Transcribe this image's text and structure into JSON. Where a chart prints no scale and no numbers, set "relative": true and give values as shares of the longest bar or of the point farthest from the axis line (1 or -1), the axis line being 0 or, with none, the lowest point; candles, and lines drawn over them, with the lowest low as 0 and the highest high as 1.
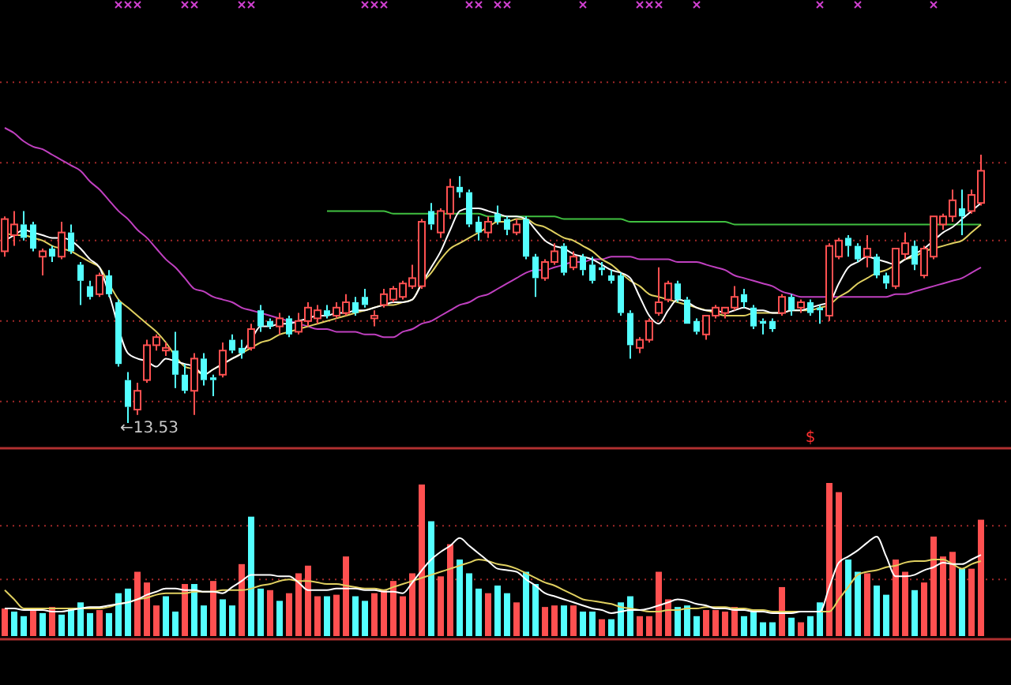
{
  "chart_data": [
    {
      "type": "candlestick",
      "relative": true,
      "ref_lines": [
        {
          "axis": "y",
          "value": 1.27,
          "color": "#a02828",
          "line_style": "dotted"
        },
        {
          "axis": "y",
          "value": 0.97,
          "color": "#a02828",
          "line_style": "dotted"
        },
        {
          "axis": "y",
          "value": 0.68,
          "color": "#a02828",
          "line_style": "dotted"
        },
        {
          "axis": "y",
          "value": 0.38,
          "color": "#a02828",
          "line_style": "dotted"
        },
        {
          "axis": "y",
          "value": 0.08,
          "color": "#a02828",
          "line_style": "dotted"
        }
      ],
      "categories": [
        null,
        null,
        null,
        null,
        null,
        null,
        null,
        null,
        null,
        null,
        null,
        null,
        null,
        null,
        null,
        null,
        null,
        null,
        null,
        null,
        null,
        null,
        null,
        null,
        null,
        null,
        null,
        null,
        null,
        null,
        null,
        null,
        null,
        null,
        null,
        null,
        null,
        null,
        null,
        null,
        null,
        null,
        null,
        null,
        null,
        null,
        null,
        null,
        null,
        null,
        null,
        null,
        null,
        null,
        null,
        null,
        null,
        null,
        null,
        null,
        null,
        null,
        null,
        null,
        null,
        null,
        null,
        null,
        null,
        null,
        null,
        null,
        null,
        null,
        null,
        null,
        null,
        null,
        null,
        null,
        null,
        null,
        null,
        null,
        null,
        null,
        null,
        null,
        null,
        null,
        null,
        null,
        null,
        null,
        null,
        null,
        null,
        null,
        null,
        null,
        null,
        null,
        null,
        null
      ],
      "ohlc": [
        [
          0.64,
          0.77,
          0.62,
          0.76
        ],
        [
          0.7,
          0.79,
          0.66,
          0.74
        ],
        [
          0.74,
          0.79,
          0.68,
          0.69
        ],
        [
          0.74,
          0.75,
          0.64,
          0.65
        ],
        [
          0.62,
          0.65,
          0.55,
          0.64
        ],
        [
          0.65,
          0.66,
          0.6,
          0.62
        ],
        [
          0.62,
          0.75,
          0.61,
          0.71
        ],
        [
          0.71,
          0.74,
          0.63,
          0.64
        ],
        [
          0.59,
          0.6,
          0.44,
          0.53
        ],
        [
          0.51,
          0.53,
          0.46,
          0.47
        ],
        [
          0.48,
          0.56,
          0.47,
          0.55
        ],
        [
          0.55,
          0.57,
          0.47,
          0.48
        ],
        [
          0.45,
          0.46,
          0.21,
          0.22
        ],
        [
          0.16,
          0.19,
          0,
          0.06
        ],
        [
          0.05,
          0.15,
          0.03,
          0.12
        ],
        [
          0.16,
          0.31,
          0.15,
          0.29
        ],
        [
          0.29,
          0.33,
          0.27,
          0.32
        ],
        [
          0.27,
          0.3,
          0.25,
          0.28
        ],
        [
          0.27,
          0.34,
          0.13,
          0.18
        ],
        [
          0.18,
          0.22,
          0.11,
          0.12
        ],
        [
          0.12,
          0.26,
          0.03,
          0.24
        ],
        [
          0.24,
          0.26,
          0.14,
          0.16
        ],
        [
          0.17,
          0.18,
          0.1,
          0.16
        ],
        [
          0.18,
          0.3,
          0.17,
          0.27
        ],
        [
          0.31,
          0.33,
          0.26,
          0.27
        ],
        [
          0.28,
          0.31,
          0.24,
          0.26
        ],
        [
          0.28,
          0.37,
          0.27,
          0.35
        ],
        [
          0.42,
          0.44,
          0.34,
          0.36
        ],
        [
          0.38,
          0.39,
          0.35,
          0.36
        ],
        [
          0.36,
          0.41,
          0.33,
          0.39
        ],
        [
          0.39,
          0.4,
          0.32,
          0.33
        ],
        [
          0.34,
          0.41,
          0.33,
          0.38
        ],
        [
          0.38,
          0.45,
          0.36,
          0.43
        ],
        [
          0.39,
          0.44,
          0.37,
          0.42
        ],
        [
          0.42,
          0.44,
          0.39,
          0.4
        ],
        [
          0.4,
          0.45,
          0.39,
          0.43
        ],
        [
          0.41,
          0.48,
          0.4,
          0.45
        ],
        [
          0.45,
          0.47,
          0.4,
          0.41
        ],
        [
          0.47,
          0.5,
          0.43,
          0.44
        ],
        [
          0.39,
          0.42,
          0.36,
          0.4
        ],
        [
          0.44,
          0.5,
          0.43,
          0.48
        ],
        [
          0.46,
          0.51,
          0.45,
          0.5
        ],
        [
          0.47,
          0.53,
          0.46,
          0.52
        ],
        [
          0.51,
          0.59,
          0.5,
          0.54
        ],
        [
          0.51,
          0.76,
          0.5,
          0.75
        ],
        [
          0.79,
          0.82,
          0.72,
          0.74
        ],
        [
          0.71,
          0.8,
          0.69,
          0.79
        ],
        [
          0.78,
          0.91,
          0.76,
          0.88
        ],
        [
          0.88,
          0.92,
          0.84,
          0.86
        ],
        [
          0.86,
          0.87,
          0.73,
          0.74
        ],
        [
          0.75,
          0.77,
          0.68,
          0.71
        ],
        [
          0.71,
          0.77,
          0.69,
          0.75
        ],
        [
          0.78,
          0.81,
          0.74,
          0.75
        ],
        [
          0.76,
          0.77,
          0.7,
          0.72
        ],
        [
          0.71,
          0.76,
          0.7,
          0.74
        ],
        [
          0.76,
          0.77,
          0.61,
          0.62
        ],
        [
          0.62,
          0.63,
          0.47,
          0.54
        ],
        [
          0.54,
          0.61,
          0.53,
          0.6
        ],
        [
          0.6,
          0.67,
          0.59,
          0.64
        ],
        [
          0.66,
          0.67,
          0.55,
          0.56
        ],
        [
          0.58,
          0.64,
          0.57,
          0.62
        ],
        [
          0.62,
          0.63,
          0.55,
          0.57
        ],
        [
          0.59,
          0.62,
          0.52,
          0.53
        ],
        [
          0.58,
          0.6,
          0.55,
          0.57
        ],
        [
          0.55,
          0.57,
          0.52,
          0.53
        ],
        [
          0.55,
          0.56,
          0.4,
          0.41
        ],
        [
          0.41,
          0.42,
          0.24,
          0.29
        ],
        [
          0.28,
          0.32,
          0.26,
          0.31
        ],
        [
          0.31,
          0.39,
          0.3,
          0.38
        ],
        [
          0.41,
          0.58,
          0.4,
          0.45
        ],
        [
          0.46,
          0.53,
          0.45,
          0.52
        ],
        [
          0.52,
          0.53,
          0.45,
          0.46
        ],
        [
          0.46,
          0.47,
          0.37,
          0.37
        ],
        [
          0.38,
          0.39,
          0.33,
          0.34
        ],
        [
          0.33,
          0.4,
          0.31,
          0.4
        ],
        [
          0.4,
          0.44,
          0.39,
          0.43
        ],
        [
          0.41,
          0.43,
          0.39,
          0.43
        ],
        [
          0.43,
          0.51,
          0.42,
          0.47
        ],
        [
          0.48,
          0.5,
          0.43,
          0.45
        ],
        [
          0.43,
          0.44,
          0.35,
          0.36
        ],
        [
          0.38,
          0.39,
          0.33,
          0.37
        ],
        [
          0.38,
          0.39,
          0.34,
          0.35
        ],
        [
          0.41,
          0.48,
          0.4,
          0.47
        ],
        [
          0.47,
          0.48,
          0.4,
          0.42
        ],
        [
          0.43,
          0.46,
          0.41,
          0.45
        ],
        [
          0.45,
          0.46,
          0.4,
          0.41
        ],
        [
          0.43,
          0.44,
          0.37,
          0.42
        ],
        [
          0.4,
          0.67,
          0.38,
          0.66
        ],
        [
          0.62,
          0.69,
          0.61,
          0.68
        ],
        [
          0.69,
          0.7,
          0.62,
          0.66
        ],
        [
          0.66,
          0.67,
          0.6,
          0.61
        ],
        [
          0.62,
          0.7,
          0.58,
          0.65
        ],
        [
          0.62,
          0.63,
          0.54,
          0.55
        ],
        [
          0.55,
          0.56,
          0.5,
          0.52
        ],
        [
          0.51,
          0.65,
          0.5,
          0.65
        ],
        [
          0.63,
          0.71,
          0.61,
          0.67
        ],
        [
          0.66,
          0.68,
          0.57,
          0.59
        ],
        [
          0.55,
          0.66,
          0.54,
          0.65
        ],
        [
          0.62,
          0.77,
          0.61,
          0.77
        ],
        [
          0.74,
          0.78,
          0.72,
          0.77
        ],
        [
          0.77,
          0.87,
          0.75,
          0.83
        ],
        [
          0.8,
          0.87,
          0.7,
          0.77
        ],
        [
          0.79,
          0.87,
          0.78,
          0.85
        ],
        [
          0.82,
          1,
          0.81,
          0.94
        ]
      ],
      "colors": [
        "#ff5050",
        "#ff5050",
        "#54ffff",
        "#54ffff",
        "#ff5050",
        "#54ffff",
        "#ff5050",
        "#54ffff",
        "#54ffff",
        "#54ffff",
        "#ff5050",
        "#54ffff",
        "#54ffff",
        "#54ffff",
        "#ff5050",
        "#ff5050",
        "#ff5050",
        "#ff5050",
        "#54ffff",
        "#54ffff",
        "#ff5050",
        "#54ffff",
        "#54ffff",
        "#ff5050",
        "#54ffff",
        "#54ffff",
        "#ff5050",
        "#54ffff",
        "#54ffff",
        "#ff5050",
        "#54ffff",
        "#ff5050",
        "#ff5050",
        "#ff5050",
        "#54ffff",
        "#ff5050",
        "#ff5050",
        "#54ffff",
        "#54ffff",
        "#ff5050",
        "#ff5050",
        "#ff5050",
        "#ff5050",
        "#ff5050",
        "#ff5050",
        "#54ffff",
        "#ff5050",
        "#ff5050",
        "#54ffff",
        "#54ffff",
        "#54ffff",
        "#ff5050",
        "#54ffff",
        "#54ffff",
        "#ff5050",
        "#54ffff",
        "#54ffff",
        "#ff5050",
        "#ff5050",
        "#54ffff",
        "#ff5050",
        "#54ffff",
        "#54ffff",
        "#54ffff",
        "#54ffff",
        "#54ffff",
        "#54ffff",
        "#ff5050",
        "#ff5050",
        "#ff5050",
        "#ff5050",
        "#54ffff",
        "#54ffff",
        "#54ffff",
        "#ff5050",
        "#ff5050",
        "#ff5050",
        "#ff5050",
        "#54ffff",
        "#54ffff",
        "#54ffff",
        "#54ffff",
        "#ff5050",
        "#54ffff",
        "#ff5050",
        "#54ffff",
        "#54ffff",
        "#ff5050",
        "#ff5050",
        "#54ffff",
        "#54ffff",
        "#ff5050",
        "#54ffff",
        "#54ffff",
        "#ff5050",
        "#ff5050",
        "#54ffff",
        "#ff5050",
        "#ff5050",
        "#ff5050",
        "#ff5050",
        "#54ffff",
        "#ff5050",
        "#ff5050"
      ],
      "series": [
        {
          "type": "line",
          "color": "#c040c0",
          "values": [
            1.1,
            1.08,
            1.05,
            1.03,
            1.02,
            1.0,
            0.98,
            0.96,
            0.94,
            0.9,
            0.87,
            0.83,
            0.79,
            0.76,
            0.72,
            0.69,
            0.65,
            0.61,
            0.58,
            0.54,
            0.5,
            0.49,
            0.47,
            0.46,
            0.45,
            0.43,
            0.42,
            0.41,
            0.4,
            0.39,
            0.38,
            0.37,
            0.36,
            0.35,
            0.35,
            0.34,
            0.34,
            0.34,
            0.33,
            0.33,
            0.32,
            0.32,
            0.34,
            0.35,
            0.37,
            0.38,
            0.4,
            0.42,
            0.44,
            0.45,
            0.47,
            0.48,
            0.5,
            0.52,
            0.54,
            0.56,
            0.57,
            0.57,
            0.58,
            0.59,
            0.6,
            0.6,
            0.61,
            0.61,
            0.62,
            0.62,
            0.62,
            0.61,
            0.61,
            0.61,
            0.61,
            0.6,
            0.6,
            0.6,
            0.59,
            0.58,
            0.57,
            0.55,
            0.54,
            0.53,
            0.52,
            0.51,
            0.49,
            0.48,
            0.47,
            0.47,
            0.47,
            0.47,
            0.47,
            0.47,
            0.47,
            0.47,
            0.47,
            0.47,
            0.48,
            0.48,
            0.49,
            0.5,
            0.51,
            0.52,
            0.53,
            0.54,
            0.56,
            0.58
          ]
        },
        {
          "type": "line",
          "color": "#40c040",
          "values": [
            null,
            null,
            null,
            null,
            null,
            null,
            null,
            null,
            null,
            null,
            null,
            null,
            null,
            null,
            null,
            null,
            null,
            null,
            null,
            null,
            null,
            null,
            null,
            null,
            null,
            null,
            null,
            null,
            null,
            null,
            null,
            null,
            null,
            null,
            0.79,
            0.79,
            0.79,
            0.79,
            0.79,
            0.79,
            0.79,
            0.78,
            0.78,
            0.78,
            0.78,
            0.78,
            0.78,
            0.78,
            0.78,
            0.78,
            0.78,
            0.77,
            0.77,
            0.77,
            0.77,
            0.77,
            0.77,
            0.77,
            0.77,
            0.76,
            0.76,
            0.76,
            0.76,
            0.76,
            0.76,
            0.76,
            0.75,
            0.75,
            0.75,
            0.75,
            0.75,
            0.75,
            0.75,
            0.75,
            0.75,
            0.75,
            0.75,
            0.74,
            0.74,
            0.74,
            0.74,
            0.74,
            0.74,
            0.74,
            0.74,
            0.74,
            0.74,
            0.74,
            0.74,
            0.74,
            0.74,
            0.74,
            0.74,
            0.74,
            0.74,
            0.74,
            0.74,
            0.74,
            0.74,
            0.74,
            0.74,
            0.74,
            0.74,
            0.74
          ]
        },
        {
          "type": "line",
          "color": "#e0d060",
          "values": [
            0.71,
            0.7,
            0.7,
            0.69,
            0.68,
            0.66,
            0.65,
            0.64,
            0.62,
            0.6,
            0.58,
            0.52,
            0.46,
            0.43,
            0.4,
            0.37,
            0.34,
            0.3,
            0.25,
            0.21,
            0.2,
            0.18,
            0.2,
            0.22,
            0.24,
            0.26,
            0.28,
            0.3,
            0.31,
            0.33,
            0.34,
            0.35,
            0.36,
            0.37,
            0.38,
            0.39,
            0.4,
            0.41,
            0.42,
            0.43,
            0.44,
            0.44,
            0.45,
            0.46,
            0.52,
            0.56,
            0.61,
            0.65,
            0.67,
            0.69,
            0.71,
            0.73,
            0.75,
            0.75,
            0.76,
            0.76,
            0.74,
            0.73,
            0.71,
            0.69,
            0.68,
            0.66,
            0.64,
            0.61,
            0.59,
            0.56,
            0.53,
            0.51,
            0.48,
            0.47,
            0.46,
            0.45,
            0.44,
            0.43,
            0.42,
            0.41,
            0.4,
            0.4,
            0.4,
            0.41,
            0.41,
            0.41,
            0.41,
            0.42,
            0.42,
            0.42,
            0.43,
            0.44,
            0.47,
            0.49,
            0.52,
            0.54,
            0.56,
            0.57,
            0.59,
            0.61,
            0.62,
            0.64,
            0.65,
            0.66,
            0.67,
            0.68,
            0.71,
            0.74
          ]
        },
        {
          "type": "line",
          "color": "#ffffff",
          "values": [
            0.68,
            0.7,
            0.72,
            0.71,
            0.7,
            0.69,
            0.69,
            0.68,
            0.65,
            0.61,
            0.58,
            0.48,
            null,
            0.26,
            0.24,
            0.23,
            0.21,
            0.24,
            0.23,
            0.22,
            0.21,
            0.18,
            0.2,
            0.22,
            0.24,
            0.26,
            0.31,
            0.36,
            0.36,
            0.37,
            0.37,
            0.38,
            0.39,
            0.4,
            0.4,
            0.41,
            0.41,
            0.42,
            0.42,
            0.43,
            0.44,
            0.45,
            0.45,
            0.46,
            0.52,
            0.58,
            0.64,
            0.72,
            0.79,
            0.8,
            0.8,
            0.79,
            0.78,
            0.77,
            0.77,
            0.76,
            0.72,
            0.68,
            0.66,
            0.65,
            0.63,
            0.62,
            0.61,
            0.59,
            0.57,
            0.56,
            0.54,
            0.47,
            0.4,
            0.37,
            0.42,
            0.46,
            0.45,
            0.43,
            0.42,
            0.42,
            0.41,
            0.42,
            0.43,
            0.42,
            0.42,
            0.41,
            0.41,
            0.42,
            0.42,
            0.43,
            0.44,
            0.45,
            0.52,
            0.58,
            0.6,
            0.62,
            0.61,
            0.6,
            0.59,
            0.61,
            0.63,
            0.65,
            0.68,
            0.71,
            0.73,
            0.76,
            0.79,
            0.82
          ]
        }
      ],
      "annotations": [
        "←13.53"
      ]
    },
    {
      "type": "bar",
      "relative": true,
      "ref_lines": [
        {
          "axis": "y",
          "value": 0.72,
          "color": "#a02828",
          "line_style": "dotted"
        },
        {
          "axis": "y",
          "value": 0.37,
          "color": "#a02828",
          "line_style": "dotted"
        }
      ],
      "categories": [
        null,
        null,
        null,
        null,
        null,
        null,
        null,
        null,
        null,
        null,
        null,
        null,
        null,
        null,
        null,
        null,
        null,
        null,
        null,
        null,
        null,
        null,
        null,
        null,
        null,
        null,
        null,
        null,
        null,
        null,
        null,
        null,
        null,
        null,
        null,
        null,
        null,
        null,
        null,
        null,
        null,
        null,
        null,
        null,
        null,
        null,
        null,
        null,
        null,
        null,
        null,
        null,
        null,
        null,
        null,
        null,
        null,
        null,
        null,
        null,
        null,
        null,
        null,
        null,
        null,
        null,
        null,
        null,
        null,
        null,
        null,
        null,
        null,
        null,
        null,
        null,
        null,
        null,
        null,
        null,
        null,
        null,
        null,
        null,
        null,
        null,
        null,
        null,
        null,
        null,
        null,
        null,
        null,
        null,
        null,
        null,
        null,
        null,
        null,
        null,
        null,
        null,
        null,
        null
      ],
      "series": [
        {
          "type": "bar",
          "values": [
            0.18,
            0.16,
            0.13,
            0.18,
            0.15,
            0.19,
            0.14,
            0.18,
            0.22,
            0.15,
            0.17,
            0.15,
            0.28,
            0.31,
            0.42,
            0.35,
            0.2,
            0.26,
            0.16,
            0.34,
            0.34,
            0.2,
            0.36,
            0.24,
            0.2,
            0.47,
            0.78,
            0.31,
            0.3,
            0.23,
            0.28,
            0.41,
            0.46,
            0.26,
            0.26,
            0.27,
            0.52,
            0.26,
            0.23,
            0.28,
            0.3,
            0.36,
            0.26,
            0.41,
            0.99,
            0.75,
            0.39,
            0.6,
            0.5,
            0.41,
            0.31,
            0.28,
            0.33,
            0.28,
            0.22,
            0.42,
            0.34,
            0.19,
            0.2,
            0.2,
            0.2,
            0.16,
            0.16,
            0.11,
            0.11,
            0.22,
            0.26,
            0.13,
            0.13,
            0.42,
            0.24,
            0.19,
            0.2,
            0.13,
            0.17,
            0.17,
            0.16,
            0.19,
            0.13,
            0.17,
            0.09,
            0.09,
            0.32,
            0.12,
            0.09,
            0.13,
            0.22,
            1.0,
            0.94,
            0.5,
            0.42,
            0.41,
            0.33,
            0.27,
            0.5,
            0.42,
            0.3,
            0.35,
            0.65,
            0.52,
            0.55,
            0.44,
            0.44,
            0.76
          ],
          "colors": [
            "#ff5050",
            "#54ffff",
            "#54ffff",
            "#ff5050",
            "#54ffff",
            "#ff5050",
            "#54ffff",
            "#54ffff",
            "#54ffff",
            "#54ffff",
            "#ff5050",
            "#54ffff",
            "#54ffff",
            "#54ffff",
            "#ff5050",
            "#ff5050",
            "#ff5050",
            "#54ffff",
            "#54ffff",
            "#ff5050",
            "#54ffff",
            "#54ffff",
            "#ff5050",
            "#54ffff",
            "#54ffff",
            "#ff5050",
            "#54ffff",
            "#54ffff",
            "#ff5050",
            "#54ffff",
            "#ff5050",
            "#ff5050",
            "#ff5050",
            "#ff5050",
            "#54ffff",
            "#ff5050",
            "#ff5050",
            "#54ffff",
            "#54ffff",
            "#ff5050",
            "#ff5050",
            "#ff5050",
            "#ff5050",
            "#ff5050",
            "#ff5050",
            "#54ffff",
            "#ff5050",
            "#ff5050",
            "#54ffff",
            "#54ffff",
            "#54ffff",
            "#ff5050",
            "#54ffff",
            "#54ffff",
            "#ff5050",
            "#54ffff",
            "#54ffff",
            "#ff5050",
            "#ff5050",
            "#54ffff",
            "#ff5050",
            "#54ffff",
            "#54ffff",
            "#ff5050",
            "#54ffff",
            "#54ffff",
            "#54ffff",
            "#ff5050",
            "#ff5050",
            "#ff5050",
            "#ff5050",
            "#54ffff",
            "#54ffff",
            "#54ffff",
            "#ff5050",
            "#ff5050",
            "#ff5050",
            "#ff5050",
            "#54ffff",
            "#54ffff",
            "#54ffff",
            "#54ffff",
            "#ff5050",
            "#54ffff",
            "#ff5050",
            "#54ffff",
            "#54ffff",
            "#ff5050",
            "#ff5050",
            "#54ffff",
            "#54ffff",
            "#ff5050",
            "#54ffff",
            "#54ffff",
            "#ff5050",
            "#ff5050",
            "#54ffff",
            "#ff5050",
            "#ff5050",
            "#ff5050",
            "#ff5050",
            "#54ffff",
            "#ff5050",
            "#ff5050"
          ]
        },
        {
          "type": "line",
          "color": "#e0d060",
          "values": [
            0.3,
            0.24,
            0.18,
            0.18,
            0.18,
            0.18,
            0.18,
            0.18,
            0.18,
            0.18,
            0.18,
            0.19,
            0.21,
            0.22,
            0.24,
            0.25,
            0.27,
            0.28,
            0.28,
            0.28,
            0.29,
            0.29,
            0.29,
            0.3,
            0.3,
            0.3,
            0.31,
            0.33,
            0.34,
            0.36,
            0.37,
            0.36,
            0.36,
            0.35,
            0.34,
            0.34,
            0.33,
            0.32,
            0.31,
            0.31,
            0.3,
            0.32,
            0.34,
            0.36,
            0.38,
            0.4,
            0.42,
            0.44,
            0.46,
            0.48,
            0.5,
            0.49,
            0.47,
            0.46,
            0.44,
            0.41,
            0.38,
            0.35,
            0.33,
            0.3,
            0.27,
            0.24,
            0.23,
            0.22,
            0.21,
            0.19,
            0.18,
            0.17,
            0.16,
            0.16,
            0.17,
            0.17,
            0.18,
            0.18,
            0.19,
            0.19,
            0.19,
            0.18,
            0.18,
            0.17,
            0.17,
            0.16,
            0.16,
            0.16,
            0.16,
            null,
            0.16,
            0.16,
            0.24,
            0.32,
            0.4,
            0.42,
            0.43,
            0.45,
            0.46,
            0.48,
            0.49,
            0.49,
            0.5,
            0.5,
            0.47,
            0.44,
            0.47,
            0.49
          ]
        },
        {
          "type": "line",
          "color": "#ffffff",
          "values": [
            0.18,
            0.18,
            0.17,
            0.17,
            0.17,
            0.16,
            0.16,
            0.17,
            0.18,
            0.19,
            0.19,
            0.2,
            0.21,
            0.22,
            0.24,
            0.27,
            0.29,
            0.31,
            0.31,
            0.3,
            0.3,
            0.29,
            0.29,
            0.28,
            0.32,
            0.36,
            0.4,
            0.4,
            0.4,
            0.39,
            0.39,
            0.35,
            0.3,
            0.3,
            0.3,
            0.31,
            0.31,
            0.31,
            0.3,
            0.3,
            0.29,
            0.29,
            0.28,
            0.35,
            0.43,
            0.5,
            0.55,
            0.59,
            0.64,
            0.59,
            0.54,
            0.49,
            0.44,
            0.43,
            0.42,
            0.37,
            0.33,
            0.28,
            0.26,
            0.24,
            0.22,
            0.2,
            0.18,
            0.17,
            0.15,
            0.16,
            0.17,
            0.17,
            0.18,
            0.2,
            0.22,
            0.24,
            0.23,
            0.21,
            0.2,
            0.18,
            0.18,
            0.17,
            0.17,
            0.16,
            0.16,
            0.15,
            0.15,
            0.15,
            0.16,
            0.16,
            0.16,
            0.32,
            0.48,
            0.52,
            0.56,
            0.61,
            0.65,
            0.52,
            0.39,
            0.39,
            0.4,
            0.43,
            0.45,
            0.48,
            0.47,
            0.47,
            0.5,
            0.53
          ]
        }
      ],
      "annotations": [
        "$"
      ]
    }
  ]
}
